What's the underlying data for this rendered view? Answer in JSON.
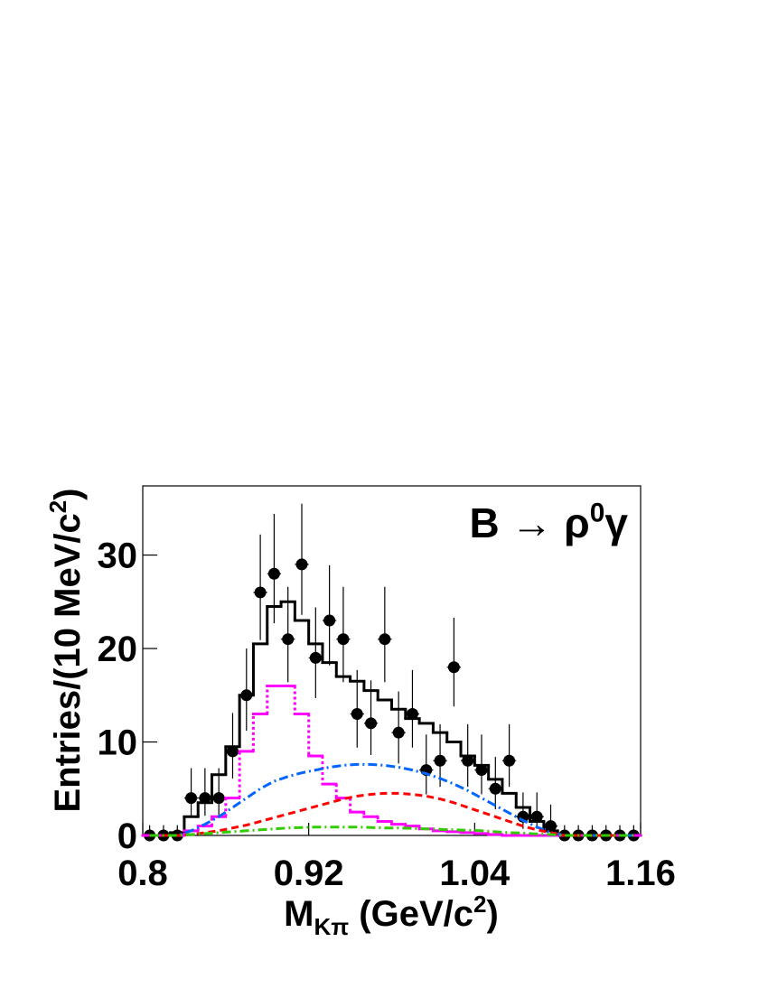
{
  "chart_data": {
    "type": "histogram",
    "annotation": [
      {
        "text": "B → ρ"
      },
      {
        "sup": "0"
      },
      {
        "text": "γ"
      }
    ],
    "x_label": [
      {
        "text": "M"
      },
      {
        "sub": "Kπ"
      },
      {
        "text": " (GeV/c"
      },
      {
        "sup": "2"
      },
      {
        "text": ")"
      }
    ],
    "y_label": [
      {
        "text": "Entries/(10 MeV/c"
      },
      {
        "sup": "2"
      },
      {
        "text": ")"
      }
    ],
    "xlim": [
      0.8,
      1.16
    ],
    "ylim": [
      0,
      37.4
    ],
    "xticks": [
      0.8,
      0.92,
      1.04,
      1.16
    ],
    "yticks": [
      0,
      10,
      20,
      30
    ],
    "bins": [
      0.8,
      0.81,
      0.82,
      0.83,
      0.84,
      0.85,
      0.86,
      0.87,
      0.88,
      0.89,
      0.9,
      0.91,
      0.92,
      0.93,
      0.94,
      0.95,
      0.96,
      0.97,
      0.98,
      0.99,
      1.0,
      1.01,
      1.02,
      1.03,
      1.04,
      1.05,
      1.06,
      1.07,
      1.08,
      1.09,
      1.1,
      1.11,
      1.12,
      1.13,
      1.14,
      1.15,
      1.16
    ],
    "x": [
      0.805,
      0.815,
      0.825,
      0.835,
      0.845,
      0.855,
      0.865,
      0.875,
      0.885,
      0.895,
      0.905,
      0.915,
      0.925,
      0.935,
      0.945,
      0.955,
      0.965,
      0.975,
      0.985,
      0.995,
      1.005,
      1.015,
      1.025,
      1.035,
      1.045,
      1.055,
      1.065,
      1.075,
      1.085,
      1.095,
      1.105,
      1.115,
      1.125,
      1.135,
      1.145,
      1.155
    ],
    "series": [
      {
        "style": "points",
        "color": "#000000",
        "values": [
          0,
          0,
          0,
          4,
          4,
          4,
          9,
          15,
          26,
          28,
          21,
          29,
          19,
          23,
          21,
          13,
          12,
          21,
          11,
          13,
          7,
          8,
          18,
          8,
          7,
          5,
          8,
          2,
          2,
          1,
          0,
          0,
          0,
          0,
          0,
          0
        ],
        "err_low": [
          0,
          0,
          0,
          1.9,
          1.9,
          1.9,
          2.9,
          3.8,
          5.1,
          5.3,
          4.6,
          5.4,
          4.3,
          4.8,
          4.6,
          3.6,
          3.4,
          4.6,
          3.3,
          3.6,
          2.6,
          2.8,
          4.2,
          2.8,
          2.6,
          2.2,
          2.8,
          1.3,
          1.3,
          0.8,
          0,
          0,
          0,
          0,
          0,
          0
        ],
        "err_high": [
          1.1,
          1.1,
          1.1,
          3.2,
          3.2,
          3.2,
          4.1,
          5.0,
          6.2,
          6.4,
          5.6,
          6.5,
          5.4,
          5.9,
          5.6,
          4.7,
          4.6,
          5.6,
          4.4,
          4.7,
          3.8,
          3.9,
          5.3,
          3.9,
          3.8,
          3.4,
          3.9,
          2.6,
          2.6,
          2.3,
          1.1,
          1.1,
          1.1,
          1.1,
          1.1,
          1.1
        ]
      },
      {
        "style": "step",
        "color": "#000000",
        "dash": "solid",
        "values": [
          0,
          0,
          0.3,
          2,
          3.5,
          6.5,
          9.5,
          15,
          20.5,
          24.5,
          25,
          23,
          20.5,
          18.5,
          17,
          16.5,
          15.5,
          14.5,
          13.5,
          12.5,
          12,
          11,
          10,
          8.5,
          7.5,
          6,
          4.5,
          3,
          1.5,
          0.5,
          0,
          0,
          0,
          0,
          0,
          0
        ]
      },
      {
        "style": "step",
        "color": "#ff00ff",
        "dash": "dot",
        "values": [
          0,
          0,
          0,
          0.5,
          1,
          2,
          4,
          9,
          13,
          16,
          16,
          13,
          8.5,
          5.5,
          4,
          2.5,
          2,
          1.5,
          1.2,
          1,
          0.7,
          0.5,
          0.4,
          0.3,
          0.2,
          0.1,
          0,
          0,
          0,
          0,
          0,
          0,
          0,
          0,
          0,
          0
        ]
      },
      {
        "style": "line",
        "color": "#0066ff",
        "dash": "dashdot",
        "values": [
          0,
          0,
          0,
          0.5,
          1.2,
          2,
          3,
          4,
          5,
          5.8,
          6.3,
          6.7,
          7,
          7.3,
          7.5,
          7.6,
          7.6,
          7.5,
          7.3,
          7,
          6.6,
          6.1,
          5.5,
          4.8,
          4,
          3.2,
          2.4,
          1.6,
          0.9,
          0.3,
          0,
          0,
          0,
          0,
          0,
          0
        ]
      },
      {
        "style": "line",
        "color": "#ff0000",
        "dash": "dash",
        "values": [
          0,
          0,
          0,
          0.1,
          0.3,
          0.5,
          0.8,
          1.1,
          1.5,
          1.9,
          2.3,
          2.7,
          3.1,
          3.5,
          3.9,
          4.2,
          4.4,
          4.5,
          4.5,
          4.4,
          4.2,
          3.9,
          3.5,
          3,
          2.5,
          2,
          1.5,
          1,
          0.6,
          0.3,
          0,
          0,
          0,
          0,
          0,
          0
        ]
      },
      {
        "style": "line",
        "color": "#33cc00",
        "dash": "dashdot",
        "values": [
          0,
          0,
          0,
          0.1,
          0.2,
          0.3,
          0.4,
          0.5,
          0.6,
          0.7,
          0.8,
          0.85,
          0.9,
          0.9,
          0.9,
          0.9,
          0.85,
          0.8,
          0.8,
          0.75,
          0.7,
          0.65,
          0.6,
          0.55,
          0.5,
          0.4,
          0.3,
          0.25,
          0.15,
          0.1,
          0,
          0,
          0,
          0,
          0,
          0
        ]
      }
    ]
  }
}
